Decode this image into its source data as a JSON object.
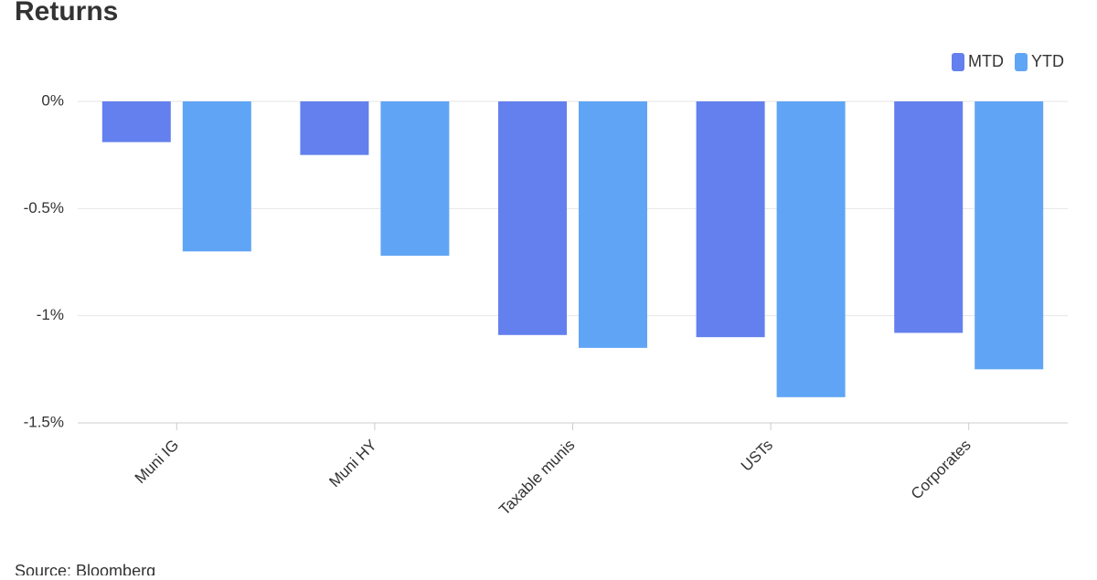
{
  "chart_data": {
    "type": "bar",
    "title": "Returns",
    "source": "Source: Bloomberg",
    "categories": [
      "Muni IG",
      "Muni HY",
      "Taxable munis",
      "USTs",
      "Corporates"
    ],
    "series": [
      {
        "name": "MTD",
        "color": "#6380ee",
        "values": [
          -0.19,
          -0.25,
          -1.09,
          -1.1,
          -1.08
        ]
      },
      {
        "name": "YTD",
        "color": "#60a5f5",
        "values": [
          -0.7,
          -0.72,
          -1.15,
          -1.38,
          -1.25
        ]
      }
    ],
    "ylim": [
      -1.5,
      0
    ],
    "yticks": [
      {
        "value": 0,
        "label": "0%"
      },
      {
        "value": -0.5,
        "label": "-0.5%"
      },
      {
        "value": -1,
        "label": "-1%"
      },
      {
        "value": -1.5,
        "label": "-1.5%"
      }
    ],
    "grid": true,
    "legend": "top-right"
  }
}
